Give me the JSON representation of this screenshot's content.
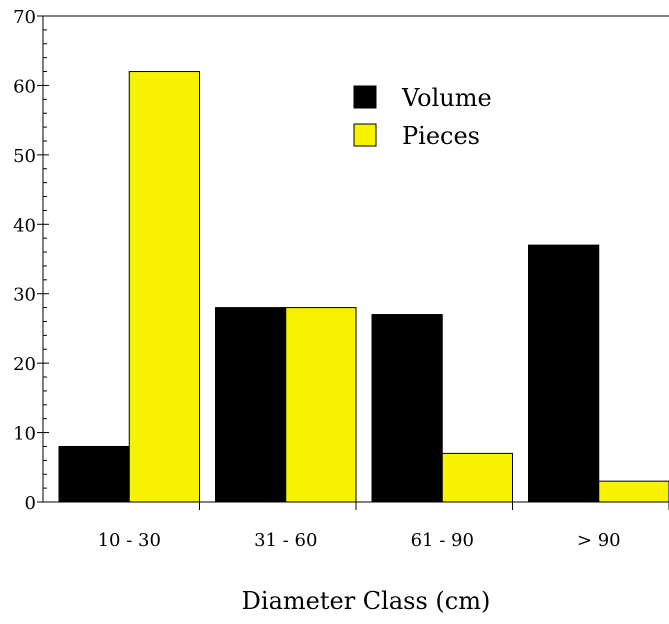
{
  "chart_data": {
    "type": "bar",
    "categories": [
      "10 - 30",
      "31 - 60",
      "61 - 90",
      "> 90"
    ],
    "series": [
      {
        "name": "Volume",
        "values": [
          8,
          28,
          27,
          37
        ],
        "color": "#000000"
      },
      {
        "name": "Pieces",
        "values": [
          62,
          28,
          7,
          3
        ],
        "color": "#f7f200"
      }
    ],
    "xlabel": "Diameter Class (cm)",
    "ylabel": "",
    "ylim": [
      0,
      70
    ],
    "yticks": [
      0,
      10,
      20,
      30,
      40,
      50,
      60,
      70
    ],
    "grid": false,
    "legend": "top-right"
  }
}
